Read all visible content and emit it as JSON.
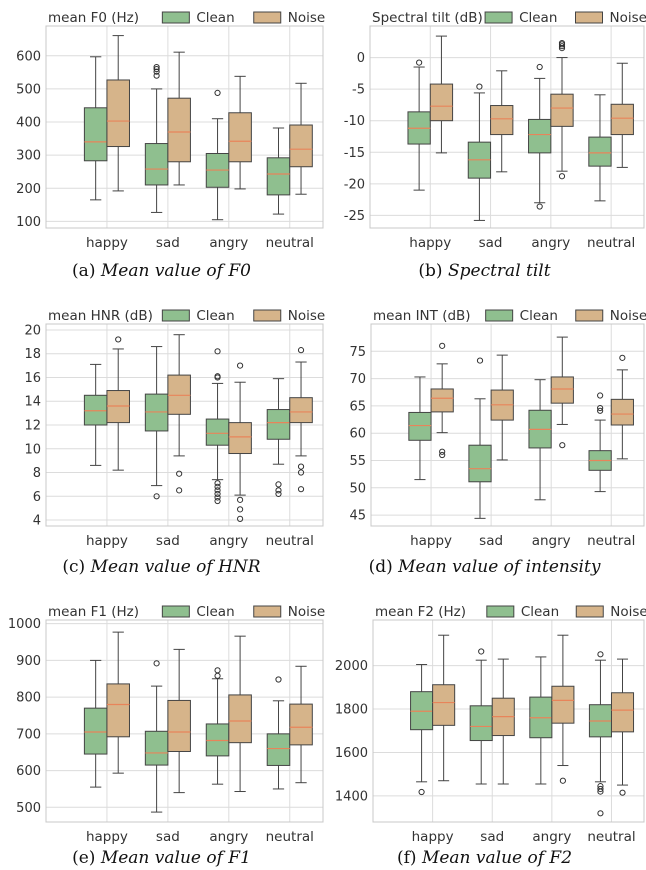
{
  "colors": {
    "clean": "#8fbf8f",
    "noise": "#d6b48a",
    "median": "#e8845a",
    "grid": "#dcdcdc",
    "frame": "#c8c8c8"
  },
  "chart_data": [
    {
      "type": "box",
      "id": "a",
      "title": "mean F0 (Hz)",
      "caption_prefix": "(a)",
      "caption_text": "Mean value of F0",
      "categories": [
        "happy",
        "sad",
        "angry",
        "neutral"
      ],
      "legend": [
        "Clean",
        "Noise"
      ],
      "legend_position": "top",
      "ylim": [
        80,
        690
      ],
      "yticks": [
        100,
        200,
        300,
        400,
        500,
        600
      ],
      "grid": true,
      "series": [
        {
          "name": "Clean",
          "boxes": [
            {
              "whislo": 165,
              "q1": 283,
              "med": 340,
              "q3": 443,
              "whishi": 597,
              "fliers": []
            },
            {
              "whislo": 127,
              "q1": 210,
              "med": 258,
              "q3": 335,
              "whishi": 500,
              "fliers": [
                540,
                552,
                560,
                566
              ]
            },
            {
              "whislo": 105,
              "q1": 203,
              "med": 255,
              "q3": 305,
              "whishi": 410,
              "fliers": [
                488
              ]
            },
            {
              "whislo": 122,
              "q1": 180,
              "med": 243,
              "q3": 292,
              "whishi": 382,
              "fliers": []
            }
          ]
        },
        {
          "name": "Noise",
          "boxes": [
            {
              "whislo": 192,
              "q1": 326,
              "med": 403,
              "q3": 527,
              "whishi": 661,
              "fliers": []
            },
            {
              "whislo": 210,
              "q1": 280,
              "med": 370,
              "q3": 472,
              "whishi": 611,
              "fliers": []
            },
            {
              "whislo": 198,
              "q1": 280,
              "med": 342,
              "q3": 428,
              "whishi": 538,
              "fliers": []
            },
            {
              "whislo": 182,
              "q1": 265,
              "med": 318,
              "q3": 391,
              "whishi": 517,
              "fliers": []
            }
          ]
        }
      ]
    },
    {
      "type": "box",
      "id": "b",
      "title": "Spectral tilt (dB)",
      "caption_prefix": "(b)",
      "caption_text": "Spectral tilt",
      "categories": [
        "happy",
        "sad",
        "angry",
        "neutral"
      ],
      "legend": [
        "Clean",
        "Noise"
      ],
      "legend_position": "top",
      "ylim": [
        -27,
        5
      ],
      "yticks": [
        -25,
        -20,
        -15,
        -10,
        -5,
        0
      ],
      "grid": true,
      "series": [
        {
          "name": "Clean",
          "boxes": [
            {
              "whislo": -21,
              "q1": -13.7,
              "med": -11.2,
              "q3": -8.6,
              "whishi": -1.5,
              "fliers": [
                -0.8
              ]
            },
            {
              "whislo": -25.8,
              "q1": -19.1,
              "med": -16.2,
              "q3": -13.4,
              "whishi": -5.6,
              "fliers": [
                -4.6
              ]
            },
            {
              "whislo": -23,
              "q1": -15.1,
              "med": -12.2,
              "q3": -9.8,
              "whishi": -3.3,
              "fliers": [
                -1.5,
                -23.6
              ]
            },
            {
              "whislo": -22.7,
              "q1": -17.2,
              "med": -15.1,
              "q3": -12.6,
              "whishi": -5.9,
              "fliers": []
            }
          ]
        },
        {
          "name": "Noise",
          "boxes": [
            {
              "whislo": -15.1,
              "q1": -10,
              "med": -7.7,
              "q3": -4.2,
              "whishi": 3.4,
              "fliers": []
            },
            {
              "whislo": -18.1,
              "q1": -12.2,
              "med": -9.7,
              "q3": -7.6,
              "whishi": -2.1,
              "fliers": []
            },
            {
              "whislo": -18,
              "q1": -10.9,
              "med": -8,
              "q3": -5.8,
              "whishi": 0,
              "fliers": [
                1.5,
                1.8,
                2.1,
                2.3,
                -18.8
              ]
            },
            {
              "whislo": -17.4,
              "q1": -12.2,
              "med": -9.6,
              "q3": -7.4,
              "whishi": -0.9,
              "fliers": []
            }
          ]
        }
      ]
    },
    {
      "type": "box",
      "id": "c",
      "title": "mean HNR (dB)",
      "caption_prefix": "(c)",
      "caption_text": "Mean value of HNR",
      "categories": [
        "happy",
        "sad",
        "angry",
        "neutral"
      ],
      "legend": [
        "Clean",
        "Noise"
      ],
      "legend_position": "top",
      "ylim": [
        3.5,
        20.5
      ],
      "yticks": [
        4,
        6,
        8,
        10,
        12,
        14,
        16,
        18,
        20
      ],
      "grid": true,
      "series": [
        {
          "name": "Clean",
          "boxes": [
            {
              "whislo": 8.6,
              "q1": 12,
              "med": 13.2,
              "q3": 14.5,
              "whishi": 17.1,
              "fliers": []
            },
            {
              "whislo": 6.9,
              "q1": 11.5,
              "med": 13.1,
              "q3": 14.6,
              "whishi": 18.6,
              "fliers": [
                6
              ]
            },
            {
              "whislo": 7.4,
              "q1": 10.3,
              "med": 11.3,
              "q3": 12.5,
              "whishi": 15.5,
              "fliers": [
                16,
                16.1,
                18.2,
                7.1,
                6.8,
                6.5,
                6.2,
                5.9,
                5.6
              ]
            },
            {
              "whislo": 8.7,
              "q1": 10.8,
              "med": 12.2,
              "q3": 13.3,
              "whishi": 15.9,
              "fliers": [
                7,
                6.5,
                6.2
              ]
            }
          ]
        },
        {
          "name": "Noise",
          "boxes": [
            {
              "whislo": 8.2,
              "q1": 12.2,
              "med": 13.6,
              "q3": 14.9,
              "whishi": 18.4,
              "fliers": [
                19.2
              ]
            },
            {
              "whislo": 9.4,
              "q1": 12.9,
              "med": 14.5,
              "q3": 16.2,
              "whishi": 19.6,
              "fliers": [
                7.9,
                6.5
              ]
            },
            {
              "whislo": 6.1,
              "q1": 9.6,
              "med": 11,
              "q3": 12.2,
              "whishi": 15.6,
              "fliers": [
                17,
                5.7,
                4.9,
                4.1
              ]
            },
            {
              "whislo": 9.4,
              "q1": 12.2,
              "med": 13.1,
              "q3": 14.3,
              "whishi": 17.3,
              "fliers": [
                18.3,
                8.5,
                8,
                6.6
              ]
            }
          ]
        }
      ]
    },
    {
      "type": "box",
      "id": "d",
      "title": "mean INT (dB)",
      "caption_prefix": "(d)",
      "caption_text": "Mean value of intensity",
      "categories": [
        "happy",
        "sad",
        "angry",
        "neutral"
      ],
      "legend": [
        "Clean",
        "Noise"
      ],
      "legend_position": "top",
      "ylim": [
        43,
        80
      ],
      "yticks": [
        45,
        50,
        55,
        60,
        65,
        70,
        75
      ],
      "grid": true,
      "series": [
        {
          "name": "Clean",
          "boxes": [
            {
              "whislo": 51.5,
              "q1": 58.7,
              "med": 61.4,
              "q3": 63.8,
              "whishi": 70.3,
              "fliers": []
            },
            {
              "whislo": 44.4,
              "q1": 51.1,
              "med": 53.5,
              "q3": 57.8,
              "whishi": 66.3,
              "fliers": [
                73.3
              ]
            },
            {
              "whislo": 47.8,
              "q1": 57.3,
              "med": 60.7,
              "q3": 64.2,
              "whishi": 69.8,
              "fliers": []
            },
            {
              "whislo": 49.3,
              "q1": 53.2,
              "med": 55,
              "q3": 56.8,
              "whishi": 62.4,
              "fliers": [
                64.1,
                64.6,
                66.9
              ]
            }
          ]
        },
        {
          "name": "Noise",
          "boxes": [
            {
              "whislo": 60.1,
              "q1": 63.9,
              "med": 66.4,
              "q3": 68.1,
              "whishi": 72.7,
              "fliers": [
                76,
                56.6,
                56
              ]
            },
            {
              "whislo": 55.1,
              "q1": 62.4,
              "med": 65.2,
              "q3": 67.9,
              "whishi": 74.3,
              "fliers": []
            },
            {
              "whislo": 61.6,
              "q1": 65.5,
              "med": 68.1,
              "q3": 70.3,
              "whishi": 77.6,
              "fliers": [
                57.8
              ]
            },
            {
              "whislo": 55.3,
              "q1": 61.5,
              "med": 63.5,
              "q3": 66.2,
              "whishi": 71.6,
              "fliers": [
                73.8
              ]
            }
          ]
        }
      ]
    },
    {
      "type": "box",
      "id": "e",
      "title": "mean F1 (Hz)",
      "caption_prefix": "(e)",
      "caption_text": "Mean value of F1",
      "categories": [
        "happy",
        "sad",
        "angry",
        "neutral"
      ],
      "legend": [
        "Clean",
        "Noise"
      ],
      "legend_position": "top",
      "ylim": [
        460,
        1010
      ],
      "yticks": [
        500,
        600,
        700,
        800,
        900,
        1000
      ],
      "grid": true,
      "series": [
        {
          "name": "Clean",
          "boxes": [
            {
              "whislo": 555,
              "q1": 645,
              "med": 705,
              "q3": 770,
              "whishi": 900,
              "fliers": []
            },
            {
              "whislo": 487,
              "q1": 615,
              "med": 648,
              "q3": 707,
              "whishi": 830,
              "fliers": [
                892
              ]
            },
            {
              "whislo": 563,
              "q1": 640,
              "med": 682,
              "q3": 727,
              "whishi": 850,
              "fliers": [
                858,
                873
              ]
            },
            {
              "whislo": 550,
              "q1": 614,
              "med": 660,
              "q3": 700,
              "whishi": 790,
              "fliers": [
                848
              ]
            }
          ]
        },
        {
          "name": "Noise",
          "boxes": [
            {
              "whislo": 593,
              "q1": 692,
              "med": 780,
              "q3": 836,
              "whishi": 977,
              "fliers": []
            },
            {
              "whislo": 540,
              "q1": 652,
              "med": 705,
              "q3": 791,
              "whishi": 930,
              "fliers": []
            },
            {
              "whislo": 543,
              "q1": 676,
              "med": 735,
              "q3": 806,
              "whishi": 966,
              "fliers": []
            },
            {
              "whislo": 567,
              "q1": 670,
              "med": 718,
              "q3": 781,
              "whishi": 884,
              "fliers": []
            }
          ]
        }
      ]
    },
    {
      "type": "box",
      "id": "f",
      "title": "mean F2 (Hz)",
      "caption_prefix": "(f)",
      "caption_text": "Mean value of F2",
      "categories": [
        "happy",
        "sad",
        "angry",
        "neutral"
      ],
      "legend": [
        "Clean",
        "Noise"
      ],
      "legend_position": "top",
      "ylim": [
        1280,
        2210
      ],
      "yticks": [
        1400,
        1600,
        1800,
        2000
      ],
      "grid": true,
      "series": [
        {
          "name": "Clean",
          "boxes": [
            {
              "whislo": 1465,
              "q1": 1705,
              "med": 1790,
              "q3": 1880,
              "whishi": 2005,
              "fliers": [
                1418
              ]
            },
            {
              "whislo": 1455,
              "q1": 1655,
              "med": 1720,
              "q3": 1815,
              "whishi": 2025,
              "fliers": [
                2065
              ]
            },
            {
              "whislo": 1455,
              "q1": 1668,
              "med": 1760,
              "q3": 1855,
              "whishi": 2040,
              "fliers": []
            },
            {
              "whislo": 1465,
              "q1": 1672,
              "med": 1745,
              "q3": 1820,
              "whishi": 2025,
              "fliers": [
                2052,
                1445,
                1432,
                1420,
                1320
              ]
            }
          ]
        },
        {
          "name": "Noise",
          "boxes": [
            {
              "whislo": 1470,
              "q1": 1725,
              "med": 1830,
              "q3": 1912,
              "whishi": 2140,
              "fliers": []
            },
            {
              "whislo": 1455,
              "q1": 1678,
              "med": 1765,
              "q3": 1850,
              "whishi": 2030,
              "fliers": []
            },
            {
              "whislo": 1540,
              "q1": 1735,
              "med": 1840,
              "q3": 1905,
              "whishi": 2140,
              "fliers": [
                1470
              ]
            },
            {
              "whislo": 1450,
              "q1": 1695,
              "med": 1795,
              "q3": 1875,
              "whishi": 2030,
              "fliers": [
                1415
              ]
            }
          ]
        }
      ]
    }
  ]
}
